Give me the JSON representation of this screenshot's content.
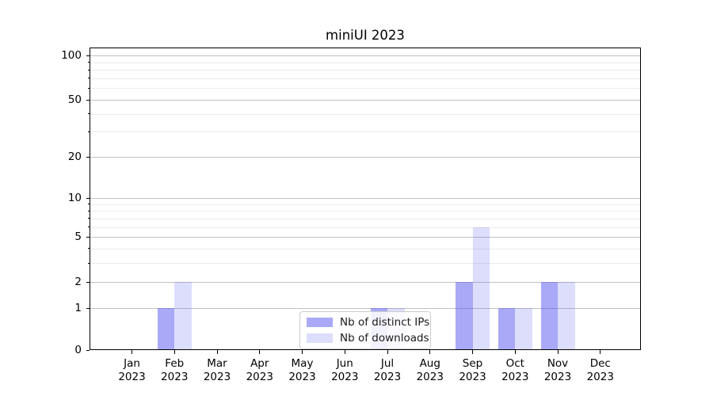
{
  "title": "miniUI 2023",
  "chart_data": {
    "type": "bar",
    "title": "miniUI 2023",
    "categories": [
      "Jan",
      "Feb",
      "Mar",
      "Apr",
      "May",
      "Jun",
      "Jul",
      "Aug",
      "Sep",
      "Oct",
      "Nov",
      "Dec"
    ],
    "category_year": "2023",
    "series": [
      {
        "name": "Nb of distinct IPs",
        "color": "rgba(84,84,241,0.5)",
        "values": [
          0,
          1,
          0,
          0,
          0,
          0,
          1,
          0,
          2,
          1,
          2,
          0
        ]
      },
      {
        "name": "Nb of downloads",
        "color": "rgba(84,84,241,0.2)",
        "values": [
          0,
          2,
          0,
          0,
          0,
          0,
          1,
          0,
          6,
          1,
          2,
          0
        ]
      }
    ],
    "y_axis": {
      "scale": "log1p",
      "ticks": [
        0,
        1,
        2,
        5,
        10,
        20,
        50,
        100
      ],
      "minor_gridlines": [
        3,
        4,
        6,
        7,
        8,
        9,
        30,
        40,
        60,
        70,
        80,
        90
      ],
      "ylim": [
        0,
        113
      ]
    },
    "xlabel": "",
    "ylabel": "",
    "grid": "both",
    "legend_position": "lower center"
  },
  "legend": {
    "items": [
      {
        "label": "Nb of distinct IPs"
      },
      {
        "label": "Nb of downloads"
      }
    ]
  },
  "colors": {
    "bar_dark": "rgba(84,84,241,0.5)",
    "bar_light": "rgba(84,84,241,0.2)",
    "grid_major": "#c2c2c2",
    "grid_minor": "#ebebeb"
  }
}
